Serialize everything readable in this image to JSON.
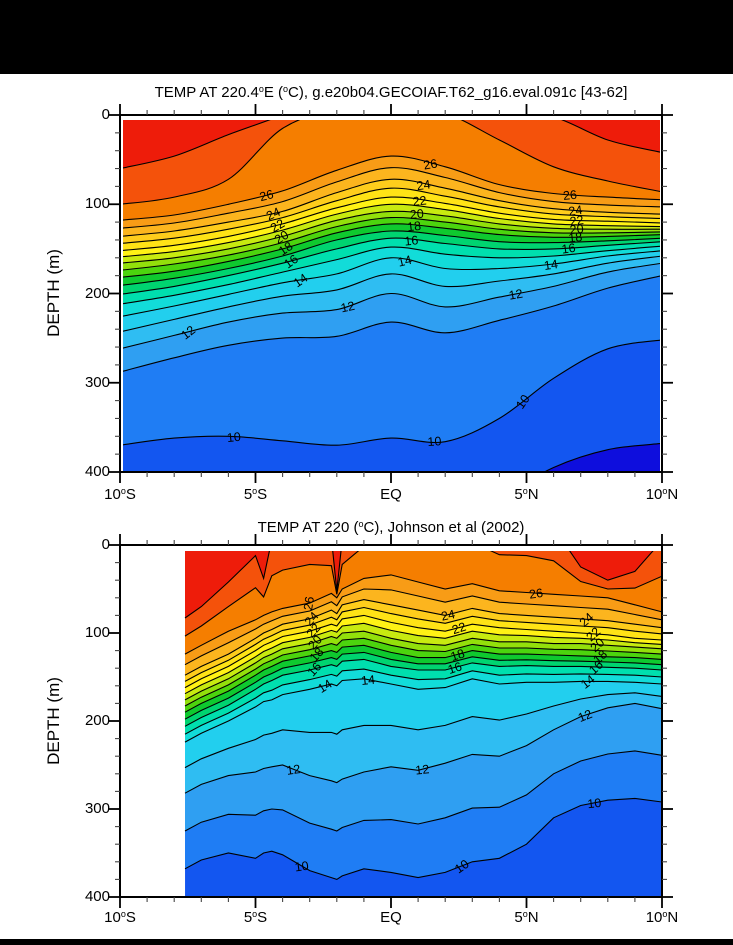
{
  "page": {
    "background": "#ffffff",
    "top_bar_color": "#000000",
    "bottom_bar_color": "#000000"
  },
  "chart_data": {
    "type": "contour",
    "subtype": "filled-contour-latitude-depth-section",
    "units": "degC",
    "contour_interval_c": 1,
    "labeled_interval_c": 2,
    "axis_color": "#000000",
    "minor_tick_color": "#444444",
    "palette": {
      "8": "#0e0edd",
      "9": "#1356f0",
      "10": "#1f7df4",
      "11": "#2f9ff2",
      "12": "#2fbdf2",
      "13": "#22cfee",
      "14": "#12dcd9",
      "15": "#00dfae",
      "16": "#00d470",
      "17": "#0fc92f",
      "18": "#4cd40e",
      "19": "#93e00b",
      "20": "#c8ea10",
      "21": "#fff215",
      "22": "#ffe316",
      "23": "#fecd1c",
      "24": "#fcb51e",
      "25": "#f89c16",
      "26": "#f57e00",
      "27": "#f4520b",
      "28": "#ee1c0a"
    },
    "panels": [
      {
        "title": "TEMP AT 220.4°E (°C), g.e20b04.GECOIAF.T62_g16.eval.091c [43-62]",
        "ylabel": "DEPTH (m)",
        "x_tick_labels": [
          "10°S",
          "5°S",
          "EQ",
          "5°N",
          "10°N"
        ],
        "x_tick_lats": [
          -10,
          -5,
          0,
          5,
          10
        ],
        "y_tick_labels": [
          "0",
          "100",
          "200",
          "300",
          "400"
        ],
        "y_tick_depths": [
          0,
          100,
          200,
          300,
          400
        ],
        "lat_range": [
          -10,
          10
        ],
        "depth_range": [
          0,
          400
        ],
        "style": "smooth",
        "interpolate_odd": false,
        "base_band": "8",
        "lats": [
          -10,
          -8,
          -6,
          -4,
          -2,
          0,
          2,
          4,
          6,
          8,
          10
        ],
        "isotherms": [
          {
            "t": 28,
            "depths": [
              60,
              46,
              22,
              0,
              -25,
              -30,
              -20,
              -8,
              2,
              28,
              42
            ]
          },
          {
            "t": 27,
            "depths": [
              100,
              92,
              72,
              15,
              -6,
              -10,
              -2,
              28,
              58,
              74,
              86
            ]
          },
          {
            "t": 26,
            "depths": [
              118,
              112,
              100,
              85,
              62,
              46,
              58,
              78,
              88,
              92,
              95
            ]
          },
          {
            "t": 25,
            "depths": [
              127,
              121,
              110,
              97,
              75,
              59,
              70,
              87,
              97,
              101,
              103
            ]
          },
          {
            "t": 24,
            "depths": [
              136,
              130,
              120,
              108,
              87,
              72,
              82,
              96,
              105,
              109,
              111
            ]
          },
          {
            "t": 23,
            "depths": [
              144,
              138,
              128,
              115,
              96,
              82,
              91,
              103,
              111,
              114,
              116
            ]
          },
          {
            "t": 22,
            "depths": [
              152,
              146,
              136,
              122,
              104,
              92,
              99,
              110,
              117,
              119,
              121
            ]
          },
          {
            "t": 21,
            "depths": [
              159,
              153,
              143,
              129,
              111,
              100,
              106,
              116,
              122,
              124,
              125
            ]
          },
          {
            "t": 20,
            "depths": [
              166,
              160,
              150,
              136,
              118,
              108,
              113,
              122,
              127,
              128,
              128
            ]
          },
          {
            "t": 19,
            "depths": [
              174,
              167,
              157,
              143,
              125,
              115,
              120,
              128,
              132,
              132,
              131
            ]
          },
          {
            "t": 18,
            "depths": [
              182,
              175,
              164,
              150,
              132,
              122,
              127,
              134,
              137,
              136,
              134
            ]
          },
          {
            "t": 17,
            "depths": [
              191,
              183,
              172,
              158,
              140,
              130,
              135,
              142,
              143,
              141,
              138
            ]
          },
          {
            "t": 16,
            "depths": [
              201,
              192,
              180,
              166,
              150,
              138,
              144,
              150,
              150,
              146,
              142
            ]
          },
          {
            "t": 15,
            "depths": [
              212,
              202,
              190,
              176,
              162,
              148,
              156,
              160,
              158,
              152,
              147
            ]
          },
          {
            "t": 14,
            "depths": [
              226,
              214,
              201,
              188,
              178,
              160,
              172,
              172,
              167,
              158,
              152
            ]
          },
          {
            "t": 13,
            "depths": [
              243,
              229,
              215,
              203,
              196,
              178,
              192,
              186,
              178,
              166,
              158
            ]
          },
          {
            "t": 12,
            "depths": [
              262,
              247,
              232,
              222,
              218,
              200,
              215,
              204,
              192,
              176,
              166
            ]
          },
          {
            "t": 11,
            "depths": [
              288,
              272,
              258,
              250,
              248,
              232,
              244,
              230,
              214,
              194,
              180
            ]
          },
          {
            "t": 10,
            "depths": [
              370,
              362,
              360,
              365,
              370,
              362,
              366,
              340,
              295,
              262,
              252
            ]
          },
          {
            "t": 9,
            "depths": [
              600,
              560,
              520,
              500,
              490,
              480,
              470,
              430,
              395,
              375,
              368
            ]
          }
        ],
        "labels": [
          [
            26,
            -4.6,
            -14
          ],
          [
            24,
            -4.35,
            -24
          ],
          [
            22,
            -4.2,
            -30
          ],
          [
            20,
            -4.05,
            -32
          ],
          [
            18,
            -3.9,
            -34
          ],
          [
            16,
            -3.7,
            -36
          ],
          [
            14,
            -3.35,
            -34
          ],
          [
            12,
            -7.5,
            -38
          ],
          [
            10,
            -5.8,
            -6
          ],
          [
            26,
            1.45,
            -10
          ],
          [
            24,
            1.2,
            -8
          ],
          [
            22,
            1.05,
            -6
          ],
          [
            20,
            0.95,
            -6
          ],
          [
            18,
            0.85,
            -6
          ],
          [
            16,
            0.75,
            -6
          ],
          [
            14,
            0.5,
            -14
          ],
          [
            12,
            -1.6,
            -12
          ],
          [
            10,
            1.6,
            -4
          ],
          [
            26,
            6.6,
            -6
          ],
          [
            24,
            6.8,
            -8
          ],
          [
            22,
            6.85,
            -8
          ],
          [
            20,
            6.85,
            -6
          ],
          [
            18,
            6.8,
            -6
          ],
          [
            16,
            6.55,
            -8
          ],
          [
            14,
            5.9,
            -8
          ],
          [
            12,
            4.6,
            -10
          ],
          [
            10,
            4.85,
            -55
          ]
        ]
      },
      {
        "title": "TEMP AT 220 (°C), Johnson et al (2002)",
        "ylabel": "DEPTH (m)",
        "x_tick_labels": [
          "10°S",
          "5°S",
          "EQ",
          "5°N",
          "10°N"
        ],
        "x_tick_lats": [
          -10,
          -5,
          0,
          5,
          10
        ],
        "y_tick_labels": [
          "0",
          "100",
          "200",
          "300",
          "400"
        ],
        "y_tick_depths": [
          0,
          100,
          200,
          300,
          400
        ],
        "lat_range": [
          -10,
          10
        ],
        "depth_range": [
          0,
          400
        ],
        "data_lat_min": -7.6,
        "style": "jagged",
        "interpolate_odd": true,
        "base_band": "9",
        "lats": [
          -7.6,
          -7,
          -6,
          -5,
          -4.7,
          -4.4,
          -4,
          -3,
          -2.2,
          -2,
          -1.8,
          -1,
          0,
          1,
          2,
          3,
          4,
          5,
          6,
          7,
          8,
          9,
          10
        ],
        "isotherms": [
          {
            "t": 28,
            "depths": [
              83,
              70,
              42,
              12,
              38,
              -6,
              -15,
              -22,
              -8,
              52,
              -6,
              -35,
              -60,
              -55,
              -45,
              -50,
              -30,
              -30,
              -20,
              25,
              40,
              30,
              -5
            ]
          },
          {
            "t": 26,
            "depths": [
              124,
              114,
              98,
              85,
              80,
              76,
              72,
              66,
              55,
              60,
              50,
              38,
              34,
              42,
              50,
              44,
              52,
              54,
              56,
              58,
              60,
              68,
              76
            ]
          },
          {
            "t": 24,
            "depths": [
              148,
              138,
              124,
              106,
              100,
              96,
              90,
              84,
              74,
              78,
              68,
              62,
              68,
              74,
              80,
              72,
              78,
              80,
              82,
              84,
              86,
              90,
              94
            ]
          },
          {
            "t": 22,
            "depths": [
              162,
              152,
              138,
              120,
              114,
              110,
              104,
              98,
              90,
              92,
              84,
              80,
              88,
              94,
              98,
              90,
              94,
              96,
              98,
              100,
              102,
              106,
              108
            ]
          },
          {
            "t": 20,
            "depths": [
              176,
              166,
              152,
              134,
              128,
              124,
              118,
              112,
              104,
              106,
              100,
              98,
              106,
              112,
              114,
              106,
              110,
              110,
              112,
              112,
              114,
              116,
              118
            ]
          },
          {
            "t": 18,
            "depths": [
              190,
              180,
              166,
              148,
              142,
              138,
              132,
              126,
              120,
              122,
              116,
              114,
              122,
              128,
              128,
              120,
              124,
              124,
              125,
              126,
              127,
              128,
              130
            ]
          },
          {
            "t": 16,
            "depths": [
              206,
              196,
              182,
              164,
              158,
              154,
              148,
              142,
              136,
              138,
              132,
              130,
              138,
              142,
              142,
              134,
              138,
              137,
              138,
              138,
              139,
              140,
              142
            ]
          },
          {
            "t": 14,
            "depths": [
              224,
              214,
              200,
              184,
              178,
              176,
              170,
              164,
              158,
              160,
              154,
              152,
              158,
              164,
              162,
              152,
              158,
              156,
              156,
              155,
              155,
              156,
              158
            ]
          },
          {
            "t": 12,
            "depths": [
              282,
              272,
              262,
              258,
              254,
              252,
              250,
              262,
              268,
              270,
              266,
              258,
              252,
              256,
              248,
              238,
              240,
              228,
              210,
              195,
              185,
              180,
              186
            ]
          },
          {
            "t": 10,
            "depths": [
              368,
              358,
              350,
              356,
              350,
              348,
              352,
              370,
              378,
              380,
              376,
              368,
              372,
              378,
              372,
              360,
              356,
              340,
              310,
              296,
              290,
              288,
              292
            ]
          }
        ],
        "labels": [
          [
            26,
            -3.05,
            -82
          ],
          [
            24,
            -2.95,
            -48
          ],
          [
            22,
            -2.88,
            -48
          ],
          [
            20,
            -2.82,
            -48
          ],
          [
            18,
            -2.76,
            -48
          ],
          [
            16,
            -2.84,
            -48
          ],
          [
            14,
            -2.45,
            -32
          ],
          [
            14,
            -0.85,
            -6
          ],
          [
            12,
            -3.6,
            -8
          ],
          [
            12,
            1.15,
            -6
          ],
          [
            10,
            -3.3,
            -8
          ],
          [
            10,
            2.6,
            -35
          ],
          [
            24,
            2.1,
            -12
          ],
          [
            22,
            2.5,
            -18
          ],
          [
            18,
            2.45,
            -18
          ],
          [
            16,
            2.35,
            -18
          ],
          [
            26,
            5.35,
            -8
          ],
          [
            24,
            7.2,
            -42
          ],
          [
            22,
            7.45,
            -42
          ],
          [
            20,
            7.6,
            -42
          ],
          [
            18,
            7.7,
            -42
          ],
          [
            16,
            7.55,
            -42
          ],
          [
            14,
            7.25,
            -38
          ],
          [
            12,
            7.15,
            -22
          ],
          [
            10,
            7.5,
            -6
          ]
        ]
      }
    ]
  }
}
